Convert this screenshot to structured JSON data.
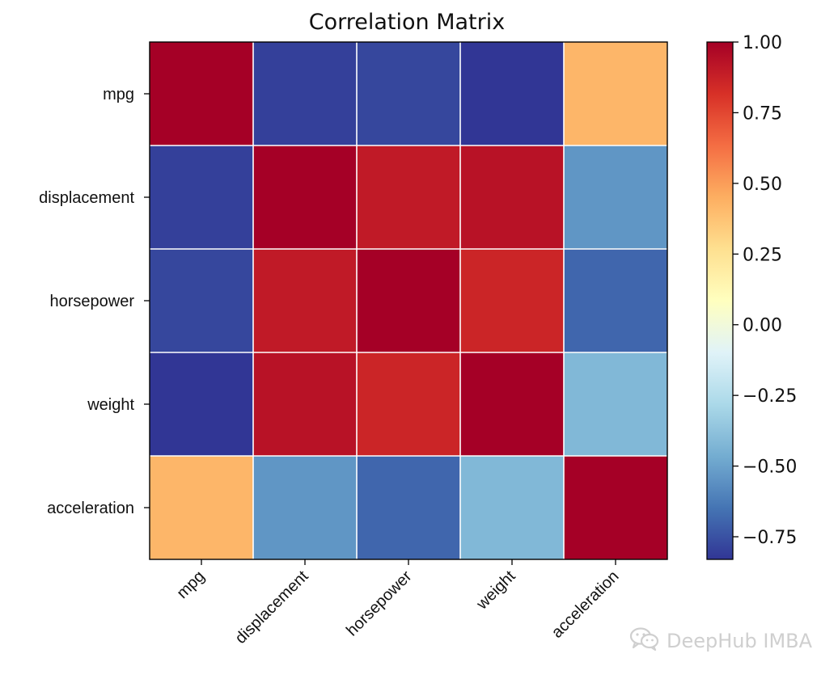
{
  "chart_data": {
    "type": "heatmap",
    "title": "Correlation Matrix",
    "xlabel": "",
    "ylabel": "",
    "row_labels": [
      "mpg",
      "displacement",
      "horsepower",
      "weight",
      "acceleration"
    ],
    "col_labels": [
      "mpg",
      "displacement",
      "horsepower",
      "weight",
      "acceleration"
    ],
    "values": [
      [
        1.0,
        -0.8,
        -0.78,
        -0.83,
        0.42
      ],
      [
        -0.8,
        1.0,
        0.9,
        0.93,
        -0.54
      ],
      [
        -0.78,
        0.9,
        1.0,
        0.86,
        -0.69
      ],
      [
        -0.83,
        0.93,
        0.86,
        1.0,
        -0.42
      ],
      [
        0.42,
        -0.54,
        -0.69,
        -0.42,
        1.0
      ]
    ],
    "colormap": "RdYlBu_r",
    "color_range": [
      -0.83,
      1.0
    ],
    "colorbar_ticks": [
      "1.00",
      "0.75",
      "0.50",
      "0.25",
      "0.00",
      "−0.25",
      "−0.50",
      "−0.75"
    ],
    "colorbar_tick_values": [
      1.0,
      0.75,
      0.5,
      0.25,
      0.0,
      -0.25,
      -0.5,
      -0.75
    ],
    "grid": true,
    "colorbar_placement": "right"
  },
  "watermark": {
    "icon": "wechat-icon",
    "text": "DeepHub IMBA"
  }
}
